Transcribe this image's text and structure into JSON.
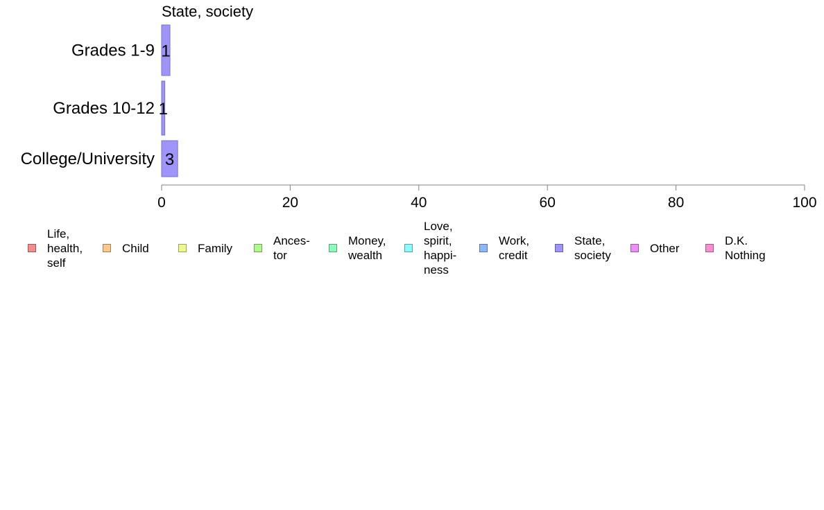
{
  "chart_data": {
    "type": "bar",
    "orientation": "horizontal",
    "stacked": true,
    "title": "State, society",
    "categories": [
      "Grades 1-9",
      "Grades 10-12",
      "College/University"
    ],
    "series": [
      {
        "name": "State, society",
        "values": [
          1.3,
          0.5,
          2.5
        ],
        "labels": [
          "1",
          "1",
          "3"
        ],
        "color": "#9f94fa"
      }
    ],
    "xlim": [
      0,
      100
    ],
    "xticks": [
      0,
      20,
      40,
      60,
      80,
      100
    ],
    "grid": false,
    "legend_position": "bottom"
  },
  "legend": {
    "items": [
      {
        "label": "Life,\nhealth,\nself",
        "color": "#f58c8c"
      },
      {
        "label": "Child",
        "color": "#fac88c"
      },
      {
        "label": "Family",
        "color": "#eefa8c"
      },
      {
        "label": "Ances-\ntor",
        "color": "#b0fa8c"
      },
      {
        "label": "Money,\nwealth",
        "color": "#8cfab8"
      },
      {
        "label": "Love,\nspirit,\nhappi-\nness",
        "color": "#8cfafa"
      },
      {
        "label": "Work,\ncredit",
        "color": "#8cb8fa"
      },
      {
        "label": "State,\nsociety",
        "color": "#9f94fa"
      },
      {
        "label": "Other",
        "color": "#ee8cfa"
      },
      {
        "label": "D.K.\nNothing",
        "color": "#fa8cd0"
      }
    ]
  }
}
